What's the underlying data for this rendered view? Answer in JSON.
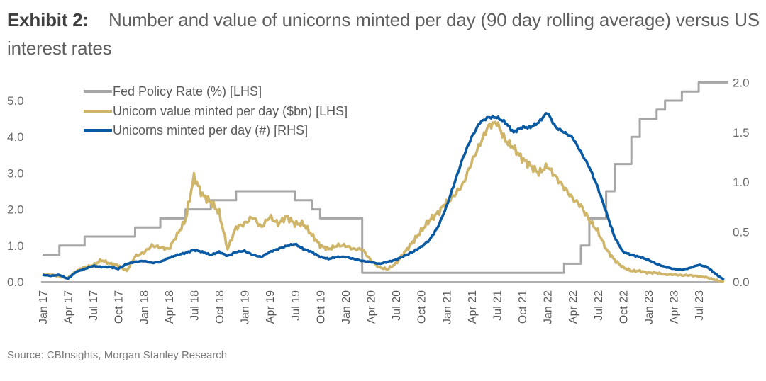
{
  "header": {
    "exhibit": "Exhibit 2:",
    "title": "Number and value of unicorns minted per day (90 day rolling average) versus US interest rates"
  },
  "footer": {
    "source": "Source: CBInsights, Morgan Stanley Research"
  },
  "colors": {
    "fed": "#a6a6a6",
    "value": "#cfb569",
    "count": "#0a5aa3",
    "axis": "#b0b0b0"
  },
  "chart_data": {
    "type": "line",
    "title": "Number and value of unicorns minted per day (90 day rolling average) versus US interest rates",
    "xlabel": "",
    "ylabel_left": "",
    "ylabel_right": "",
    "ylim_left": [
      0,
      5.5
    ],
    "ylim_right": [
      0,
      2.0
    ],
    "yticks_left": [
      "0.0",
      "1.0",
      "2.0",
      "3.0",
      "4.0",
      "5.0"
    ],
    "yticks_right": [
      "0.0",
      "0.5",
      "1.0",
      "1.5",
      "2.0"
    ],
    "grid": false,
    "legend_position": "top-left",
    "x_tick_labels": [
      "Jan 17",
      "Apr 17",
      "Jul 17",
      "Oct 17",
      "Jan 18",
      "Apr 18",
      "Jul 18",
      "Oct 18",
      "Jan 19",
      "Apr 19",
      "Jul 19",
      "Oct 19",
      "Jan 20",
      "Apr 20",
      "Jul 20",
      "Oct 20",
      "Jan 21",
      "Apr 21",
      "Jul 21",
      "Oct 21",
      "Jan 22",
      "Apr 22",
      "Jul 22",
      "Oct 22",
      "Jan 23",
      "Apr 23",
      "Jul 23"
    ],
    "x_months": [
      "2017-01",
      "2017-02",
      "2017-03",
      "2017-04",
      "2017-05",
      "2017-06",
      "2017-07",
      "2017-08",
      "2017-09",
      "2017-10",
      "2017-11",
      "2017-12",
      "2018-01",
      "2018-02",
      "2018-03",
      "2018-04",
      "2018-05",
      "2018-06",
      "2018-07",
      "2018-08",
      "2018-09",
      "2018-10",
      "2018-11",
      "2018-12",
      "2019-01",
      "2019-02",
      "2019-03",
      "2019-04",
      "2019-05",
      "2019-06",
      "2019-07",
      "2019-08",
      "2019-09",
      "2019-10",
      "2019-11",
      "2019-12",
      "2020-01",
      "2020-02",
      "2020-03",
      "2020-04",
      "2020-05",
      "2020-06",
      "2020-07",
      "2020-08",
      "2020-09",
      "2020-10",
      "2020-11",
      "2020-12",
      "2021-01",
      "2021-02",
      "2021-03",
      "2021-04",
      "2021-05",
      "2021-06",
      "2021-07",
      "2021-08",
      "2021-09",
      "2021-10",
      "2021-11",
      "2021-12",
      "2022-01",
      "2022-02",
      "2022-03",
      "2022-04",
      "2022-05",
      "2022-06",
      "2022-07",
      "2022-08",
      "2022-09",
      "2022-10",
      "2022-11",
      "2022-12",
      "2023-01",
      "2023-02",
      "2023-03",
      "2023-04",
      "2023-05",
      "2023-06",
      "2023-07",
      "2023-08",
      "2023-09",
      "2023-10"
    ],
    "series": [
      {
        "name": "Fed Policy Rate (%) [LHS]",
        "axis": "left",
        "step": true,
        "values": [
          0.75,
          0.75,
          1.0,
          1.0,
          1.0,
          1.25,
          1.25,
          1.25,
          1.25,
          1.25,
          1.25,
          1.5,
          1.5,
          1.5,
          1.75,
          1.75,
          1.75,
          2.0,
          2.0,
          2.0,
          2.25,
          2.25,
          2.25,
          2.5,
          2.5,
          2.5,
          2.5,
          2.5,
          2.5,
          2.5,
          2.25,
          2.25,
          2.0,
          1.75,
          1.75,
          1.75,
          1.75,
          1.75,
          0.25,
          0.25,
          0.25,
          0.25,
          0.25,
          0.25,
          0.25,
          0.25,
          0.25,
          0.25,
          0.25,
          0.25,
          0.25,
          0.25,
          0.25,
          0.25,
          0.25,
          0.25,
          0.25,
          0.25,
          0.25,
          0.25,
          0.25,
          0.25,
          0.5,
          0.5,
          1.0,
          1.75,
          1.75,
          2.5,
          3.25,
          3.25,
          4.0,
          4.5,
          4.5,
          4.75,
          5.0,
          5.0,
          5.25,
          5.25,
          5.5,
          5.5,
          5.5,
          5.5
        ]
      },
      {
        "name": "Unicorn value minted per day ($bn) [LHS]",
        "axis": "left",
        "values": [
          0.2,
          0.2,
          0.15,
          0.1,
          0.3,
          0.4,
          0.45,
          0.6,
          0.5,
          0.45,
          0.3,
          0.7,
          0.8,
          1.0,
          0.95,
          0.9,
          1.3,
          1.7,
          2.9,
          2.4,
          2.2,
          1.9,
          0.9,
          1.5,
          1.6,
          1.8,
          1.5,
          1.8,
          1.6,
          1.8,
          1.6,
          1.6,
          1.3,
          1.0,
          0.9,
          1.0,
          1.0,
          0.9,
          0.9,
          0.6,
          0.4,
          0.35,
          0.5,
          0.8,
          1.1,
          1.4,
          1.7,
          1.9,
          2.2,
          2.4,
          2.7,
          3.3,
          3.8,
          4.3,
          4.4,
          3.9,
          3.7,
          3.4,
          3.2,
          3.0,
          3.2,
          2.9,
          2.6,
          2.3,
          2.1,
          1.7,
          1.4,
          0.9,
          0.6,
          0.4,
          0.3,
          0.3,
          0.25,
          0.25,
          0.2,
          0.2,
          0.18,
          0.18,
          0.15,
          0.12,
          0.05,
          0.0
        ]
      },
      {
        "name": "Unicorns minted per day (#) [RHS]",
        "axis": "right",
        "values": [
          0.07,
          0.06,
          0.07,
          0.03,
          0.1,
          0.13,
          0.16,
          0.15,
          0.15,
          0.13,
          0.18,
          0.2,
          0.21,
          0.19,
          0.2,
          0.24,
          0.27,
          0.29,
          0.32,
          0.3,
          0.27,
          0.3,
          0.26,
          0.3,
          0.31,
          0.27,
          0.25,
          0.3,
          0.33,
          0.36,
          0.38,
          0.33,
          0.3,
          0.25,
          0.23,
          0.25,
          0.25,
          0.23,
          0.21,
          0.2,
          0.18,
          0.2,
          0.22,
          0.26,
          0.3,
          0.35,
          0.42,
          0.55,
          0.75,
          1.0,
          1.25,
          1.45,
          1.6,
          1.65,
          1.65,
          1.6,
          1.5,
          1.55,
          1.55,
          1.6,
          1.7,
          1.55,
          1.5,
          1.45,
          1.3,
          1.15,
          0.95,
          0.7,
          0.45,
          0.3,
          0.27,
          0.25,
          0.22,
          0.18,
          0.15,
          0.13,
          0.12,
          0.14,
          0.17,
          0.15,
          0.08,
          0.02
        ]
      }
    ]
  }
}
